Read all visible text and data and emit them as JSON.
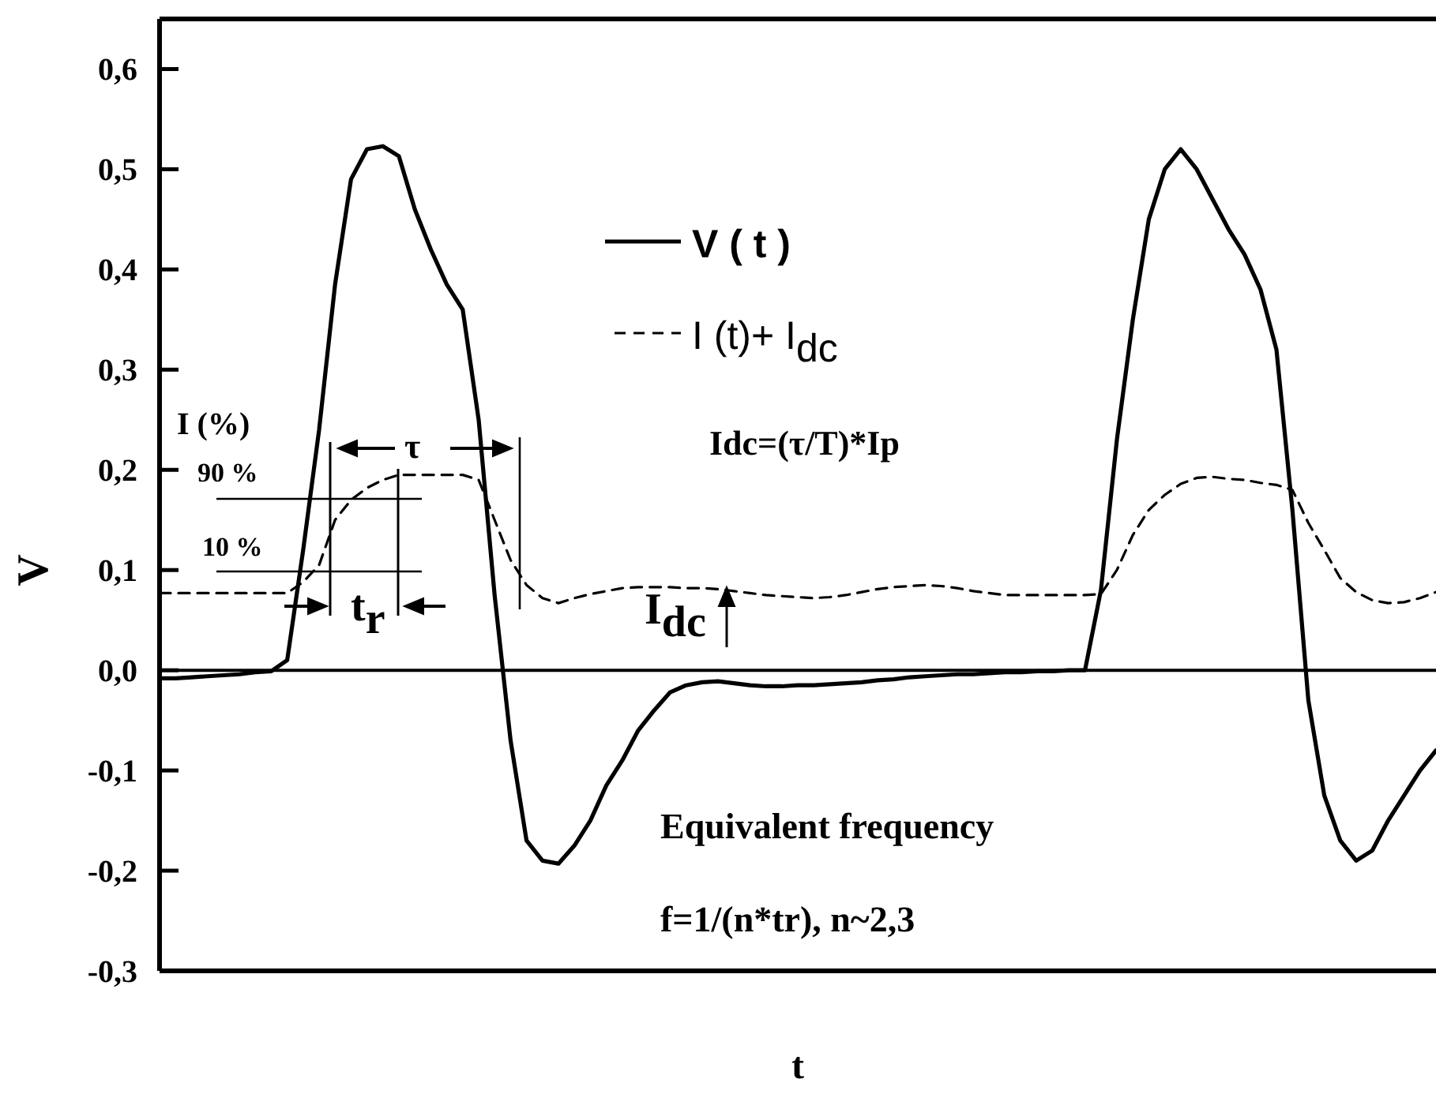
{
  "chart_data": {
    "type": "line",
    "xlabel": "t",
    "ylabel": "V",
    "categories": [
      null,
      null,
      null,
      null,
      null,
      null,
      null,
      null,
      null,
      null,
      null,
      null,
      null,
      null,
      null,
      null,
      null,
      null,
      null,
      null,
      null,
      null,
      null,
      null,
      null,
      null,
      null,
      null,
      null,
      null,
      null,
      null,
      null,
      null,
      null,
      null,
      null,
      null,
      null,
      null,
      null,
      null,
      null,
      null,
      null,
      null,
      null,
      null,
      null,
      null,
      null,
      null,
      null,
      null,
      null,
      null,
      null,
      null,
      null,
      null,
      null,
      null,
      null,
      null,
      null,
      null,
      null,
      null,
      null,
      null,
      null,
      null,
      null,
      null,
      null,
      null,
      null,
      null,
      null,
      null,
      null
    ],
    "ylim": [
      -0.3,
      0.65
    ],
    "yticks": [
      {
        "value": -0.3,
        "label": "-0,3"
      },
      {
        "value": -0.2,
        "label": "-0,2"
      },
      {
        "value": -0.1,
        "label": "-0,1"
      },
      {
        "value": 0,
        "label": "0,0"
      },
      {
        "value": 0.1,
        "label": "0,1"
      },
      {
        "value": 0.2,
        "label": "0,2"
      },
      {
        "value": 0.3,
        "label": "0,3"
      },
      {
        "value": 0.4,
        "label": "0,4"
      },
      {
        "value": 0.5,
        "label": "0,5"
      },
      {
        "value": 0.6,
        "label": "0,6"
      }
    ],
    "tick_labels": "y",
    "legend": "top",
    "series": [
      {
        "name": "V ( t )",
        "color": "#000000",
        "line_style": "solid",
        "values": [
          -0.008,
          -0.008,
          -0.007,
          -0.006,
          -0.005,
          -0.004,
          -0.002,
          -0.001,
          0.01,
          0.12,
          0.24,
          0.385,
          0.49,
          0.52,
          0.523,
          0.513,
          0.46,
          0.42,
          0.385,
          0.36,
          0.25,
          0.075,
          -0.07,
          -0.17,
          -0.19,
          -0.193,
          -0.175,
          -0.15,
          -0.115,
          -0.09,
          -0.06,
          -0.04,
          -0.022,
          -0.015,
          -0.012,
          -0.011,
          -0.013,
          -0.015,
          -0.016,
          -0.016,
          -0.015,
          -0.015,
          -0.014,
          -0.013,
          -0.012,
          -0.01,
          -0.009,
          -0.007,
          -0.006,
          -0.005,
          -0.004,
          -0.004,
          -0.003,
          -0.002,
          -0.002,
          -0.001,
          -0.001,
          0,
          0,
          0.08,
          0.23,
          0.35,
          0.45,
          0.5,
          0.52,
          0.5,
          0.47,
          0.44,
          0.415,
          0.38,
          0.32,
          0.16,
          -0.03,
          -0.125,
          -0.17,
          -0.19,
          -0.18,
          -0.15,
          -0.125,
          -0.1,
          -0.08
        ]
      },
      {
        "name": "I (t)+ I$_{dc}$",
        "color": "#000000",
        "line_style": "dashed",
        "values": [
          0.077,
          0.077,
          0.077,
          0.077,
          0.077,
          0.077,
          0.077,
          0.077,
          0.077,
          0.088,
          0.105,
          0.15,
          0.17,
          0.182,
          0.19,
          0.195,
          0.195,
          0.195,
          0.195,
          0.195,
          0.19,
          0.15,
          0.11,
          0.085,
          0.072,
          0.067,
          0.072,
          0.076,
          0.079,
          0.082,
          0.083,
          0.083,
          0.083,
          0.082,
          0.082,
          0.081,
          0.079,
          0.077,
          0.075,
          0.074,
          0.073,
          0.072,
          0.073,
          0.075,
          0.078,
          0.081,
          0.083,
          0.084,
          0.085,
          0.084,
          0.082,
          0.079,
          0.077,
          0.075,
          0.075,
          0.075,
          0.075,
          0.075,
          0.075,
          0.076,
          0.1,
          0.135,
          0.16,
          0.175,
          0.186,
          0.192,
          0.193,
          0.191,
          0.19,
          0.187,
          0.185,
          0.18,
          0.147,
          0.12,
          0.092,
          0.078,
          0.07,
          0.067,
          0.068,
          0.072,
          0.078
        ]
      }
    ],
    "ref_lines": [
      {
        "axis": "y",
        "value": 0,
        "color": "#000000",
        "line_style": "solid"
      }
    ],
    "annotations": [
      "I (%)",
      "90 %",
      "10 %",
      "τ",
      "t$_{r}$",
      "I$_{dc}$",
      "Idc=(τ/T)*Ip",
      "Equivalent frequency",
      "f=1/(n*tr), n~2,3"
    ]
  }
}
